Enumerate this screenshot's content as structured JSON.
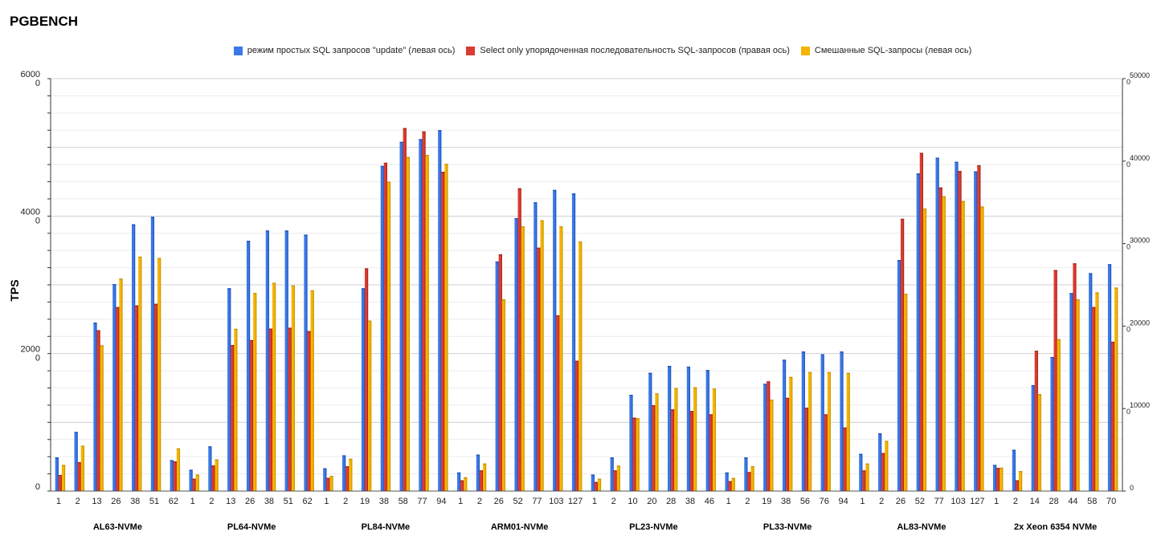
{
  "chart_data": {
    "type": "bar",
    "title": "PGBENCH",
    "ylabel": "TPS",
    "ylim": [
      0,
      6000
    ],
    "y_ticks": [
      "6000\n0",
      "4000\n0",
      "2000\n0",
      "0"
    ],
    "y2lim": [
      0,
      50000
    ],
    "y2_ticks": [
      "50000\n0",
      "40000\n0",
      "30000\n0",
      "20000\n0",
      "10000\n0",
      "0"
    ],
    "legend_position": "top-center",
    "grid": true,
    "colors": [
      "#3b78e7",
      "#dc3b2f",
      "#f4b400"
    ],
    "series": [
      {
        "name": "режим простых SQL запросов \"update\" (левая ось)",
        "axis": "left"
      },
      {
        "name": "Select only упорядоченная последовательность SQL-запросов (правая ось)",
        "axis": "right"
      },
      {
        "name": "Смешанные SQL-запросы (левая ось)",
        "axis": "left"
      }
    ],
    "groups": [
      {
        "name": "AL63-NVMe",
        "categories": [
          "1",
          "2",
          "13",
          "26",
          "38",
          "51",
          "62"
        ],
        "update": [
          490,
          860,
          2450,
          3010,
          3880,
          3990,
          450
        ],
        "select": [
          1950,
          3500,
          19500,
          22300,
          22500,
          22700,
          3600
        ],
        "mixed": [
          380,
          660,
          2120,
          3090,
          3410,
          3390,
          620
        ]
      },
      {
        "name": "PL64-NVMe",
        "categories": [
          "1",
          "2",
          "13",
          "26",
          "38",
          "51",
          "62"
        ],
        "update": [
          310,
          650,
          2950,
          3640,
          3790,
          3790,
          3730
        ],
        "select": [
          1500,
          3100,
          17700,
          18300,
          19700,
          19800,
          19400
        ],
        "mixed": [
          240,
          460,
          2360,
          2880,
          3030,
          2990,
          2920
        ]
      },
      {
        "name": "PL84-NVMe",
        "categories": [
          "1",
          "2",
          "19",
          "38",
          "58",
          "77",
          "94"
        ],
        "update": [
          330,
          520,
          2950,
          4730,
          5080,
          5120,
          5250
        ],
        "select": [
          1600,
          3000,
          27000,
          39800,
          44000,
          43600,
          38700
        ],
        "mixed": [
          220,
          470,
          2480,
          4500,
          4860,
          4890,
          4760
        ]
      },
      {
        "name": "ARM01-NVMe",
        "categories": [
          "1",
          "2",
          "26",
          "52",
          "77",
          "103",
          "127"
        ],
        "update": [
          270,
          530,
          3340,
          3970,
          4200,
          4380,
          4330
        ],
        "select": [
          1300,
          2500,
          28700,
          36700,
          29500,
          21300,
          15800
        ],
        "mixed": [
          200,
          400,
          2790,
          3850,
          3940,
          3850,
          3630
        ]
      },
      {
        "name": "PL23-NVMe",
        "categories": [
          "1",
          "2",
          "10",
          "20",
          "28",
          "38",
          "46"
        ],
        "update": [
          240,
          490,
          1400,
          1720,
          1820,
          1810,
          1760
        ],
        "select": [
          1100,
          2500,
          8900,
          10400,
          9900,
          9700,
          9300
        ],
        "mixed": [
          180,
          370,
          1060,
          1420,
          1500,
          1510,
          1490
        ]
      },
      {
        "name": "PL33-NVMe",
        "categories": [
          "1",
          "2",
          "19",
          "38",
          "56",
          "76",
          "94"
        ],
        "update": [
          270,
          490,
          1560,
          1910,
          2030,
          1990,
          2030
        ],
        "select": [
          1200,
          2300,
          13300,
          11300,
          10100,
          9300,
          7700
        ],
        "mixed": [
          190,
          360,
          1330,
          1660,
          1730,
          1730,
          1720
        ]
      },
      {
        "name": "AL83-NVMe",
        "categories": [
          "1",
          "2",
          "26",
          "52",
          "77",
          "103",
          "127"
        ],
        "update": [
          540,
          840,
          3360,
          4620,
          4850,
          4790,
          4650
        ],
        "select": [
          2500,
          4600,
          33000,
          41000,
          36800,
          38800,
          39500
        ],
        "mixed": [
          400,
          730,
          2870,
          4110,
          4290,
          4220,
          4140
        ]
      },
      {
        "name": "2x Xeon 6354 NVMe",
        "categories": [
          "1",
          "2",
          "14",
          "28",
          "44",
          "58",
          "70"
        ],
        "update": [
          380,
          600,
          1540,
          1950,
          2880,
          3170,
          3300
        ],
        "select": [
          2800,
          1300,
          17000,
          26800,
          27600,
          22300,
          18100
        ],
        "mixed": [
          340,
          290,
          1410,
          2210,
          2790,
          2890,
          2960
        ]
      }
    ]
  }
}
